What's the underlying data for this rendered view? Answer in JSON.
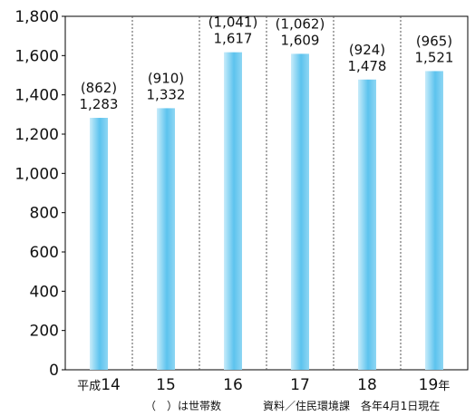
{
  "chart_data": {
    "type": "bar",
    "categories": [
      "14",
      "15",
      "16",
      "17",
      "18",
      "19"
    ],
    "category_prefix": "平成",
    "category_suffix": "年",
    "values": [
      1283,
      1332,
      1617,
      1609,
      1478,
      1521
    ],
    "value_labels": [
      "1,283",
      "1,332",
      "1,617",
      "1,609",
      "1,478",
      "1,521"
    ],
    "household_labels": [
      "(862)",
      "(910)",
      "(1,041)",
      "(1,062)",
      "(924)",
      "(965)"
    ],
    "ylim": [
      0,
      1800
    ],
    "yticks": [
      0,
      200,
      400,
      600,
      800,
      1000,
      1200,
      1400,
      1600,
      1800
    ],
    "ytick_labels": [
      "0",
      "200",
      "400",
      "600",
      "800",
      "1,000",
      "1,200",
      "1,400",
      "1,600",
      "1,800"
    ],
    "grid": "vertical-dotted",
    "bar_colors": [
      "#c9ecfa",
      "#5cc3ee"
    ],
    "footnote_legend": "（　）は世帯数",
    "footnote_source": "資料／住民環境課　各年4月1日現在"
  }
}
